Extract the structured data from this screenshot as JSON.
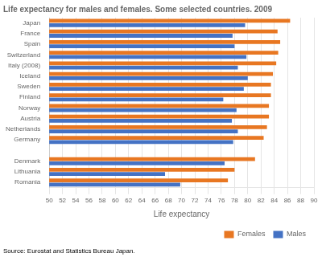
{
  "chart_data": {
    "type": "bar",
    "orientation": "horizontal",
    "title": "Life expectancy for males and females. Some selected countries. 2009",
    "xlabel": "Life expectancy",
    "annotations": [
      "Source: Eurostat and Statistics Bureau Japan."
    ],
    "categories": [
      "Japan",
      "France",
      "Spain",
      "Switzerland",
      "Italy (2008)",
      "Iceland",
      "Sweden",
      "Finland",
      "Norway",
      "Austria",
      "Netherlands",
      "Germany",
      null,
      "Denmark",
      "Lithuania",
      "Romania"
    ],
    "series": [
      {
        "name": "Females",
        "color": "#E87722",
        "values": [
          86.4,
          84.5,
          84.9,
          84.6,
          84.3,
          83.8,
          83.5,
          83.5,
          83.2,
          83.2,
          82.9,
          82.4,
          null,
          81.1,
          78.0,
          77.0
        ]
      },
      {
        "name": "Males",
        "color": "#4472C4",
        "values": [
          79.6,
          77.7,
          78.0,
          79.8,
          78.5,
          80.0,
          79.4,
          76.3,
          78.3,
          77.6,
          78.5,
          77.8,
          null,
          76.5,
          67.5,
          69.8
        ]
      }
    ],
    "xlim": [
      50,
      90
    ],
    "xticks": [
      50,
      52,
      54,
      56,
      58,
      60,
      62,
      64,
      66,
      68,
      70,
      72,
      74,
      76,
      78,
      80,
      82,
      84,
      86,
      88,
      90
    ],
    "grid": true,
    "legend": "lower right"
  }
}
